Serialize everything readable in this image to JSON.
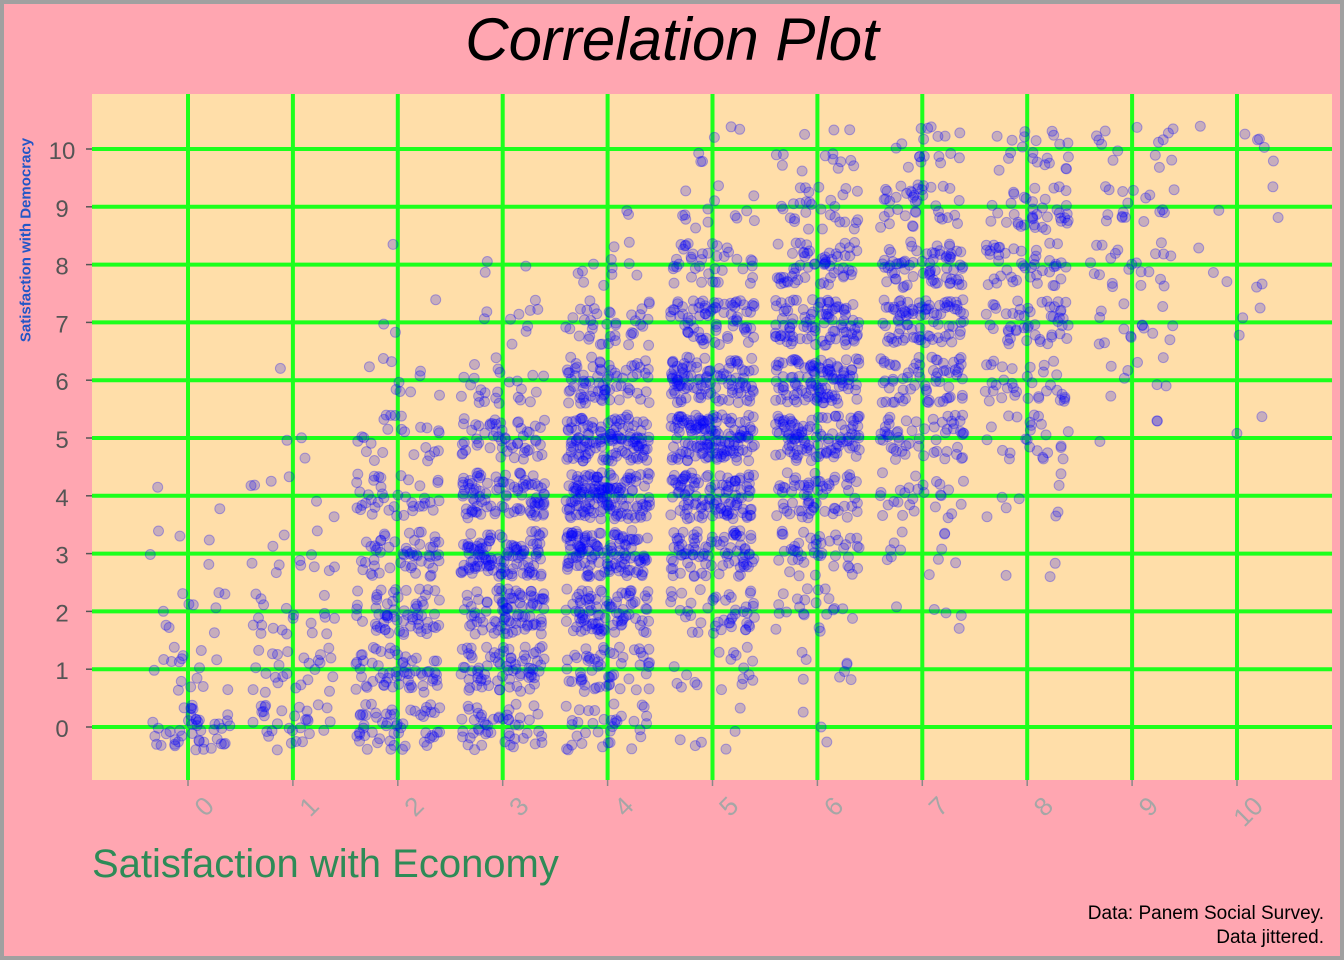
{
  "chart_data": {
    "type": "scatter",
    "title": "Correlation Plot",
    "xlabel": "Satisfaction with Economy",
    "ylabel": "Satisfaction with Democracy",
    "caption_lines": [
      "Data: Panem Social Survey.",
      "Data jittered."
    ],
    "x_ticks": [
      0,
      1,
      2,
      3,
      4,
      5,
      6,
      7,
      8,
      9,
      10
    ],
    "y_ticks": [
      0,
      1,
      2,
      3,
      4,
      5,
      6,
      7,
      8,
      9,
      10
    ],
    "xlim": [
      -0.9,
      10.9
    ],
    "ylim": [
      -0.9,
      10.9
    ],
    "grid": true,
    "jitter": 0.4,
    "cells": [
      [
        0,
        0,
        45
      ],
      [
        0,
        1,
        16
      ],
      [
        0,
        2,
        10
      ],
      [
        0,
        3,
        5
      ],
      [
        0,
        4,
        2
      ],
      [
        1,
        0,
        30
      ],
      [
        1,
        1,
        26
      ],
      [
        1,
        2,
        20
      ],
      [
        1,
        3,
        12
      ],
      [
        1,
        4,
        6
      ],
      [
        1,
        5,
        3
      ],
      [
        1,
        6,
        1
      ],
      [
        2,
        0,
        55
      ],
      [
        2,
        1,
        60
      ],
      [
        2,
        2,
        65
      ],
      [
        2,
        3,
        55
      ],
      [
        2,
        4,
        40
      ],
      [
        2,
        5,
        25
      ],
      [
        2,
        6,
        10
      ],
      [
        2,
        7,
        3
      ],
      [
        2,
        8,
        1
      ],
      [
        3,
        0,
        50
      ],
      [
        3,
        1,
        75
      ],
      [
        3,
        2,
        90
      ],
      [
        3,
        3,
        110
      ],
      [
        3,
        4,
        95
      ],
      [
        3,
        5,
        55
      ],
      [
        3,
        6,
        25
      ],
      [
        3,
        7,
        10
      ],
      [
        3,
        8,
        3
      ],
      [
        4,
        0,
        35
      ],
      [
        4,
        1,
        55
      ],
      [
        4,
        2,
        90
      ],
      [
        4,
        3,
        125
      ],
      [
        4,
        4,
        145
      ],
      [
        4,
        5,
        125
      ],
      [
        4,
        6,
        75
      ],
      [
        4,
        7,
        40
      ],
      [
        4,
        8,
        12
      ],
      [
        4,
        9,
        2
      ],
      [
        5,
        0,
        6
      ],
      [
        5,
        1,
        18
      ],
      [
        5,
        2,
        45
      ],
      [
        5,
        3,
        85
      ],
      [
        5,
        4,
        110
      ],
      [
        5,
        5,
        140
      ],
      [
        5,
        6,
        105
      ],
      [
        5,
        7,
        75
      ],
      [
        5,
        8,
        40
      ],
      [
        5,
        9,
        14
      ],
      [
        5,
        10,
        6
      ],
      [
        6,
        0,
        3
      ],
      [
        6,
        1,
        8
      ],
      [
        6,
        2,
        22
      ],
      [
        6,
        3,
        45
      ],
      [
        6,
        4,
        65
      ],
      [
        6,
        5,
        105
      ],
      [
        6,
        6,
        110
      ],
      [
        6,
        7,
        95
      ],
      [
        6,
        8,
        60
      ],
      [
        6,
        9,
        30
      ],
      [
        6,
        10,
        14
      ],
      [
        7,
        2,
        5
      ],
      [
        7,
        3,
        12
      ],
      [
        7,
        4,
        28
      ],
      [
        7,
        5,
        55
      ],
      [
        7,
        6,
        65
      ],
      [
        7,
        7,
        85
      ],
      [
        7,
        8,
        70
      ],
      [
        7,
        9,
        40
      ],
      [
        7,
        10,
        18
      ],
      [
        8,
        3,
        3
      ],
      [
        8,
        4,
        8
      ],
      [
        8,
        5,
        25
      ],
      [
        8,
        6,
        35
      ],
      [
        8,
        7,
        50
      ],
      [
        8,
        8,
        45
      ],
      [
        8,
        9,
        40
      ],
      [
        8,
        10,
        22
      ],
      [
        9,
        5,
        3
      ],
      [
        9,
        6,
        8
      ],
      [
        9,
        7,
        15
      ],
      [
        9,
        8,
        22
      ],
      [
        9,
        9,
        18
      ],
      [
        9,
        10,
        14
      ],
      [
        10,
        5,
        2
      ],
      [
        10,
        7,
        3
      ],
      [
        10,
        8,
        5
      ],
      [
        10,
        9,
        3
      ],
      [
        10,
        10,
        6
      ]
    ],
    "colors": {
      "background": "#ffa6b1",
      "panel": "#ffdea9",
      "grid": "#1cff1c",
      "point": "#0000ff",
      "axis_text": "#555555",
      "x_tick_text": "#a6a6a6"
    }
  }
}
